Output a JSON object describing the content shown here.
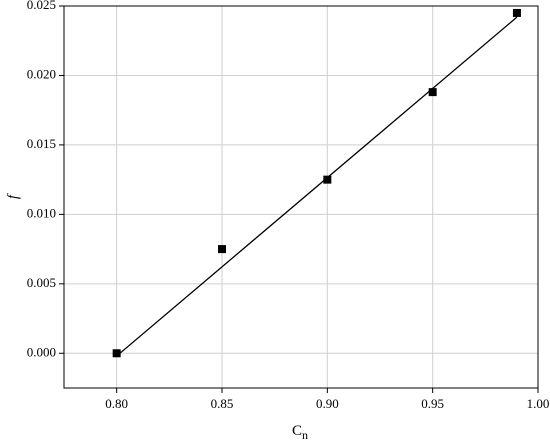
{
  "chart_data": {
    "type": "scatter",
    "xlabel": [
      "C",
      "n"
    ],
    "ylabel": "f",
    "xlim": [
      0.775,
      1.0
    ],
    "ylim": [
      -0.0025,
      0.025
    ],
    "xticks": [
      {
        "value": 0.8,
        "label": "0.80"
      },
      {
        "value": 0.85,
        "label": "0.85"
      },
      {
        "value": 0.9,
        "label": "0.90"
      },
      {
        "value": 0.95,
        "label": "0.95"
      },
      {
        "value": 1.0,
        "label": "1.00"
      }
    ],
    "yticks": [
      {
        "value": 0,
        "label": "0.000"
      },
      {
        "value": 0.005,
        "label": "0.005"
      },
      {
        "value": 0.01,
        "label": "0.010"
      },
      {
        "value": 0.015,
        "label": "0.015"
      },
      {
        "value": 0.02,
        "label": "0.020"
      },
      {
        "value": 0.025,
        "label": "0.025"
      }
    ],
    "grid": true,
    "series": [
      {
        "type": "scatter",
        "marker": "square",
        "color": "#000000",
        "x": [
          0.8,
          0.85,
          0.9,
          0.95,
          0.99
        ],
        "values": [
          0.0,
          0.0075,
          0.0125,
          0.0188,
          0.0245
        ]
      },
      {
        "type": "line",
        "color": "#000000",
        "x": [
          0.8,
          0.99
        ],
        "values": [
          -0.0002,
          0.0242
        ]
      }
    ]
  }
}
